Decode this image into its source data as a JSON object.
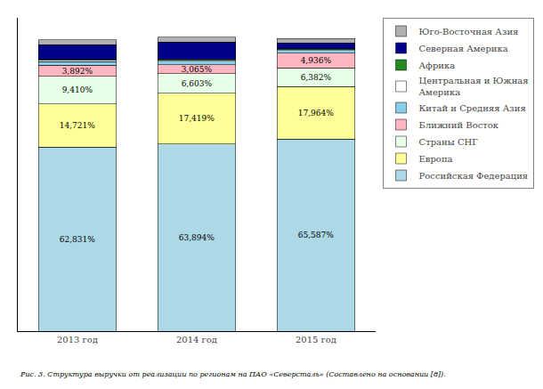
{
  "chart_data": {
    "type": "bar",
    "stacked": true,
    "categories": [
      "2013 год",
      "2014 год",
      "2015 год"
    ],
    "series": [
      {
        "name": "Российская Федерация",
        "color": "#add8e6",
        "values": [
          62.831,
          63.894,
          65.587
        ],
        "value_labels": [
          "62,831%",
          "63,894%",
          "65,587%"
        ]
      },
      {
        "name": "Европа",
        "color": "#ffff99",
        "values": [
          14.721,
          17.419,
          17.964
        ],
        "value_labels": [
          "14,721%",
          "17,419%",
          "17,964%"
        ]
      },
      {
        "name": "Страны СНГ",
        "color": "#e8ffe8",
        "values": [
          9.41,
          6.603,
          6.382
        ],
        "value_labels": [
          "9,410%",
          "6,603%",
          "6,382%"
        ]
      },
      {
        "name": "Ближний Восток",
        "color": "#ffb6c1",
        "values": [
          3.892,
          3.065,
          4.936
        ],
        "value_labels": [
          "3,892%",
          "3,065%",
          "4,936%"
        ]
      },
      {
        "name": "Китай и Средняя Азия",
        "color": "#87ceeb",
        "values": [
          1.2,
          1.2,
          1.0
        ]
      },
      {
        "name": "Центральная и Южная\nАмерика",
        "color": "#ffffff",
        "values": [
          0.4,
          0.4,
          0.3
        ]
      },
      {
        "name": "Африка",
        "color": "#228b22",
        "values": [
          0.4,
          0.4,
          0.3
        ]
      },
      {
        "name": "Северная Америка",
        "color": "#00008b",
        "values": [
          4.9,
          5.8,
          2.0
        ]
      },
      {
        "name": "Юго-Восточная Азия",
        "color": "#b0b0b0",
        "values": [
          1.8,
          1.619,
          1.411
        ]
      }
    ],
    "ylim": [
      0,
      107
    ],
    "yticks": [],
    "tick_labels": "x",
    "data_labels": true,
    "grid": false,
    "annotations": [
      "Рис. 3. Структура выручки от реализации по регионам на ПАО «Северсталь» (Составлено на основании [8])."
    ]
  }
}
